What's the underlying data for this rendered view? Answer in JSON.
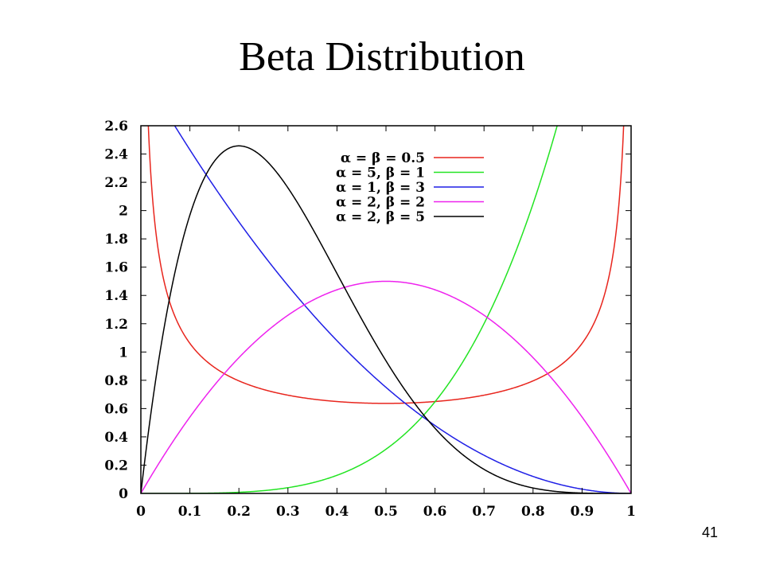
{
  "slide": {
    "title": "Beta Distribution",
    "page_number": "41"
  },
  "chart_data": {
    "type": "line",
    "title": "",
    "xlabel": "",
    "ylabel": "",
    "xlim": [
      0,
      1
    ],
    "ylim": [
      0,
      2.6
    ],
    "xticks": [
      "0",
      "0.1",
      "0.2",
      "0.3",
      "0.4",
      "0.5",
      "0.6",
      "0.7",
      "0.8",
      "0.9",
      "1"
    ],
    "yticks": [
      "0",
      "0.2",
      "0.4",
      "0.6",
      "0.8",
      "1",
      "1.2",
      "1.4",
      "1.6",
      "1.8",
      "2",
      "2.2",
      "2.4",
      "2.6"
    ],
    "grid": false,
    "legend_position": "top-right",
    "series": [
      {
        "name": "α = β = 0.5",
        "alpha": 0.5,
        "beta": 0.5,
        "color": "#e8251d"
      },
      {
        "name": "α = 5, β = 1",
        "alpha": 5,
        "beta": 1,
        "color": "#22e422"
      },
      {
        "name": "α = 1, β = 3",
        "alpha": 1,
        "beta": 3,
        "color": "#1f1fe6"
      },
      {
        "name": "α = 2, β = 2",
        "alpha": 2,
        "beta": 2,
        "color": "#ee22ee"
      },
      {
        "name": "α = 2, β = 5",
        "alpha": 2,
        "beta": 5,
        "color": "#000000"
      }
    ]
  }
}
